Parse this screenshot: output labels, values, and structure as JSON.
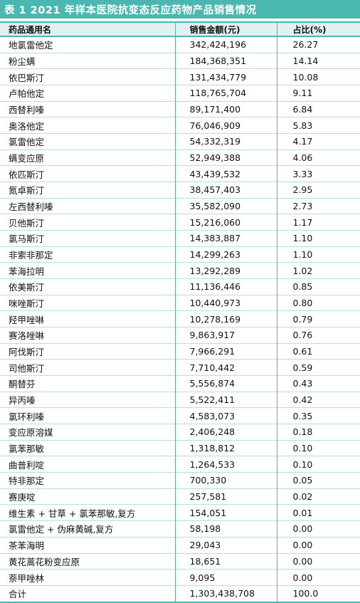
{
  "caption": "表 1 2021 年样本医院抗变态反应药物产品销售情况",
  "headers": [
    "药品通用名",
    "销售金额(元)",
    "占比(%)"
  ],
  "rows": [
    [
      "地氯雷他定",
      "342,424,196",
      "26.27"
    ],
    [
      "粉尘螨",
      "184,368,351",
      "14.14"
    ],
    [
      "依巴斯汀",
      "131,434,779",
      "10.08"
    ],
    [
      "卢帕他定",
      "118,765,704",
      "9.11"
    ],
    [
      "西替利嗪",
      "89,171,400",
      "6.84"
    ],
    [
      "奥洛他定",
      "76,046,909",
      "5.83"
    ],
    [
      "氯雷他定",
      "54,332,319",
      "4.17"
    ],
    [
      "螨变应原",
      "52,949,388",
      "4.06"
    ],
    [
      "依匹斯汀",
      "43,439,532",
      "3.33"
    ],
    [
      "氮卓斯汀",
      "38,457,403",
      "2.95"
    ],
    [
      "左西替利嗪",
      "35,582,090",
      "2.73"
    ],
    [
      "贝他斯汀",
      "15,216,060",
      "1.17"
    ],
    [
      "氯马斯汀",
      "14,383,887",
      "1.10"
    ],
    [
      "非索非那定",
      "14,299,263",
      "1.10"
    ],
    [
      "苯海拉明",
      "13,292,289",
      "1.02"
    ],
    [
      "依美斯汀",
      "11,136,446",
      "0.85"
    ],
    [
      "咪唑斯汀",
      "10,440,973",
      "0.80"
    ],
    [
      "羟甲唑啉",
      "10,278,169",
      "0.79"
    ],
    [
      "赛洛唑啉",
      "9,863,917",
      "0.76"
    ],
    [
      "阿伐斯汀",
      "7,966,291",
      "0.61"
    ],
    [
      "司他斯汀",
      "7,710,442",
      "0.59"
    ],
    [
      "酮替芬",
      "5,556,874",
      "0.43"
    ],
    [
      "异丙嗪",
      "5,522,411",
      "0.42"
    ],
    [
      "氯环利嗪",
      "4,583,073",
      "0.35"
    ],
    [
      "变应原溶媒",
      "2,406,248",
      "0.18"
    ],
    [
      "氯苯那敏",
      "1,318,812",
      "0.10"
    ],
    [
      "曲普利啶",
      "1,264,533",
      "0.10"
    ],
    [
      "特非那定",
      "700,330",
      "0.05"
    ],
    [
      "赛庚啶",
      "257,581",
      "0.02"
    ],
    [
      "维生素 + 甘草 + 氯苯那敏,复方",
      "154,051",
      "0.01"
    ],
    [
      "氯雷他定 + 伪麻黄碱,复方",
      "58,198",
      "0.00"
    ],
    [
      "茶苯海明",
      "29,043",
      "0.00"
    ],
    [
      "黄花蒿花粉变应原",
      "18,651",
      "0.00"
    ],
    [
      "萘甲唑林",
      "9,095",
      "0.00"
    ]
  ],
  "total": [
    "合计",
    "1,303,438,708",
    "100.0"
  ],
  "colors": {
    "accent": "#4bb7b1",
    "header_bg": "#e0f1f0",
    "row_rule": "#b9dfdc"
  }
}
